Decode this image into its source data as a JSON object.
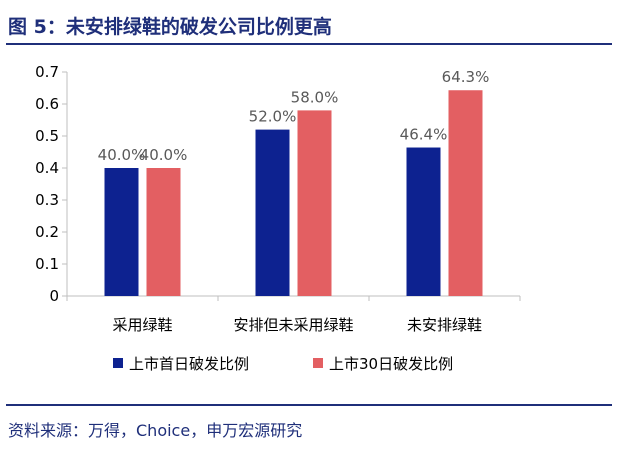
{
  "header": {
    "title": "图 5：未安排绿鞋的破发公司比例更高"
  },
  "footer": {
    "source": "资料来源：万得，Choice，申万宏源研究"
  },
  "colors": {
    "brand": "#1f2f7a",
    "series1": "#0d2290",
    "series2": "#e35f62",
    "axis": "#bfbfbf"
  },
  "chart_data": {
    "type": "bar",
    "title": "",
    "xlabel": "",
    "ylabel": "",
    "ylim": [
      0,
      0.7
    ],
    "yticks": [
      "0",
      "0.1",
      "0.2",
      "0.3",
      "0.4",
      "0.5",
      "0.6",
      "0.7"
    ],
    "grid": false,
    "legend_position": "bottom",
    "categories": [
      "采用绿鞋",
      "安排但未采用绿鞋",
      "未安排绿鞋"
    ],
    "series": [
      {
        "name": "上市首日破发比例",
        "values": [
          0.4,
          0.52,
          0.464
        ],
        "labels": [
          "40.0%",
          "52.0%",
          "46.4%"
        ]
      },
      {
        "name": "上市30日破发比例",
        "values": [
          0.4,
          0.58,
          0.643
        ],
        "labels": [
          "40.0%",
          "58.0%",
          "64.3%"
        ]
      }
    ]
  }
}
